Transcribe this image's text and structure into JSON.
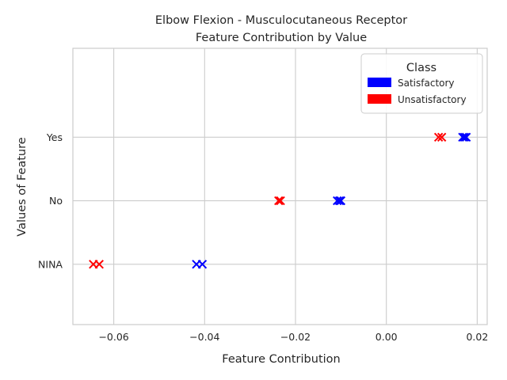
{
  "chart_data": {
    "type": "scatter",
    "title": "Elbow Flexion - Musculocutaneous Receptor",
    "subtitle": "Feature Contribution by Value",
    "xlabel": "Feature Contribution",
    "ylabel": "Values of Feature",
    "xlim": [
      -0.069,
      0.0222
    ],
    "xticks": [
      -0.06,
      -0.04,
      -0.02,
      0.0,
      0.02
    ],
    "xtick_labels": [
      "−0.06",
      "−0.04",
      "−0.02",
      "0.00",
      "0.02"
    ],
    "categories": [
      "NINA",
      "No",
      "Yes"
    ],
    "ylim": [
      -0.95,
      3.4
    ],
    "grid": true,
    "marker": "x",
    "legend": {
      "title": "Class",
      "placement": "top-right",
      "entries": [
        {
          "label": "Satisfactory",
          "color": "#0000ff"
        },
        {
          "label": "Unsatisfactory",
          "color": "#ff0000"
        }
      ]
    },
    "series": [
      {
        "name": "Satisfactory",
        "color": "#0000ff",
        "points": [
          {
            "x": -0.0418,
            "y": "NINA"
          },
          {
            "x": -0.0405,
            "y": "NINA"
          },
          {
            "x": -0.0108,
            "y": "No"
          },
          {
            "x": -0.0103,
            "y": "No"
          },
          {
            "x": -0.01,
            "y": "No"
          },
          {
            "x": 0.0168,
            "y": "Yes"
          },
          {
            "x": 0.0172,
            "y": "Yes"
          },
          {
            "x": 0.0176,
            "y": "Yes"
          }
        ]
      },
      {
        "name": "Unsatisfactory",
        "color": "#ff0000",
        "points": [
          {
            "x": -0.0645,
            "y": "NINA"
          },
          {
            "x": -0.0632,
            "y": "NINA"
          },
          {
            "x": -0.0237,
            "y": "No"
          },
          {
            "x": -0.0233,
            "y": "No"
          },
          {
            "x": 0.0115,
            "y": "Yes"
          },
          {
            "x": 0.0122,
            "y": "Yes"
          }
        ]
      }
    ]
  }
}
